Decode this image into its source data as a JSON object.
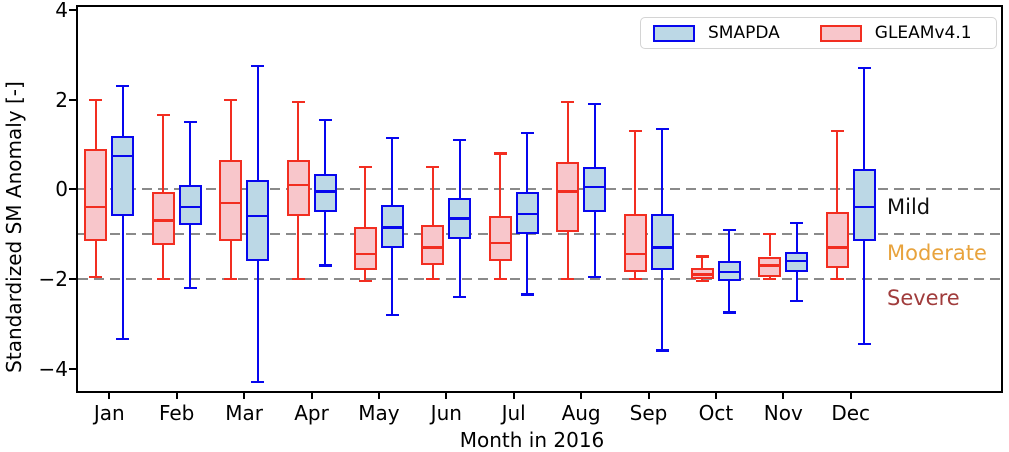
{
  "chart_data": {
    "type": "boxplot",
    "xlabel": "Month in 2016",
    "ylabel": "Standardized SM Anomaly [-]",
    "categories": [
      "Jan",
      "Feb",
      "Mar",
      "Apr",
      "May",
      "Jun",
      "Jul",
      "Aug",
      "Sep",
      "Oct",
      "Nov",
      "Dec"
    ],
    "yticks": {
      "values": [
        4,
        2,
        0,
        -2,
        -4
      ],
      "labels": [
        "4",
        "2",
        "0",
        "−2",
        "−4"
      ]
    },
    "ylim": [
      -4.55,
      4.1
    ],
    "grid": false,
    "reference_lines": {
      "values": [
        0,
        -1,
        -2
      ],
      "style": "dashed",
      "color": "#8a8a8a"
    },
    "legend": {
      "position": "upper right",
      "items": [
        "SMAPDA",
        "GLEAMv4.1"
      ]
    },
    "box_format": "[whisker_low, q1, median, q3, whisker_high]",
    "series": [
      {
        "name": "GLEAMv4.1",
        "edge_color": "#F22E21",
        "fill_color": "#F8C6CB",
        "boxes": [
          [
            -1.95,
            -1.15,
            -0.4,
            0.9,
            2.0
          ],
          [
            -2.0,
            -1.25,
            -0.7,
            -0.05,
            1.65
          ],
          [
            -2.0,
            -1.15,
            -0.3,
            0.65,
            2.0
          ],
          [
            -2.0,
            -0.6,
            0.1,
            0.65,
            1.95
          ],
          [
            -2.05,
            -1.8,
            -1.45,
            -0.85,
            0.5
          ],
          [
            -2.0,
            -1.7,
            -1.3,
            -0.8,
            0.5
          ],
          [
            -2.0,
            -1.6,
            -1.2,
            -0.6,
            0.8
          ],
          [
            -2.0,
            -0.95,
            -0.05,
            0.6,
            1.95
          ],
          [
            -2.0,
            -1.85,
            -1.45,
            -0.55,
            1.3
          ],
          [
            -2.05,
            -2.0,
            -1.9,
            -1.75,
            -1.5
          ],
          [
            -2.0,
            -1.95,
            -1.7,
            -1.5,
            -1.0
          ],
          [
            -2.0,
            -1.75,
            -1.3,
            -0.5,
            1.3
          ]
        ]
      },
      {
        "name": "SMAPDA",
        "edge_color": "#0707EE",
        "fill_color": "#BCD8E6",
        "boxes": [
          [
            -3.35,
            -0.6,
            0.75,
            1.2,
            2.3
          ],
          [
            -2.2,
            -0.8,
            -0.4,
            0.1,
            1.5
          ],
          [
            -4.3,
            -1.6,
            -0.6,
            0.2,
            2.75
          ],
          [
            -1.7,
            -0.5,
            -0.05,
            0.35,
            1.55
          ],
          [
            -2.8,
            -1.3,
            -0.85,
            -0.35,
            1.15
          ],
          [
            -2.4,
            -1.1,
            -0.65,
            -0.2,
            1.1
          ],
          [
            -2.35,
            -1.0,
            -0.55,
            -0.05,
            1.25
          ],
          [
            -1.95,
            -0.5,
            0.05,
            0.5,
            1.9
          ],
          [
            -3.6,
            -1.8,
            -1.3,
            -0.55,
            1.35
          ],
          [
            -2.75,
            -2.05,
            -1.85,
            -1.6,
            -0.9
          ],
          [
            -2.5,
            -1.85,
            -1.6,
            -1.4,
            -0.75
          ],
          [
            -3.45,
            -1.15,
            -0.4,
            0.45,
            2.7
          ]
        ]
      }
    ],
    "zone_labels": [
      {
        "text": "Mild",
        "color": "#111111"
      },
      {
        "text": "Moderate",
        "color": "#E8A33D"
      },
      {
        "text": "Severe",
        "color": "#A03C3C"
      }
    ]
  }
}
